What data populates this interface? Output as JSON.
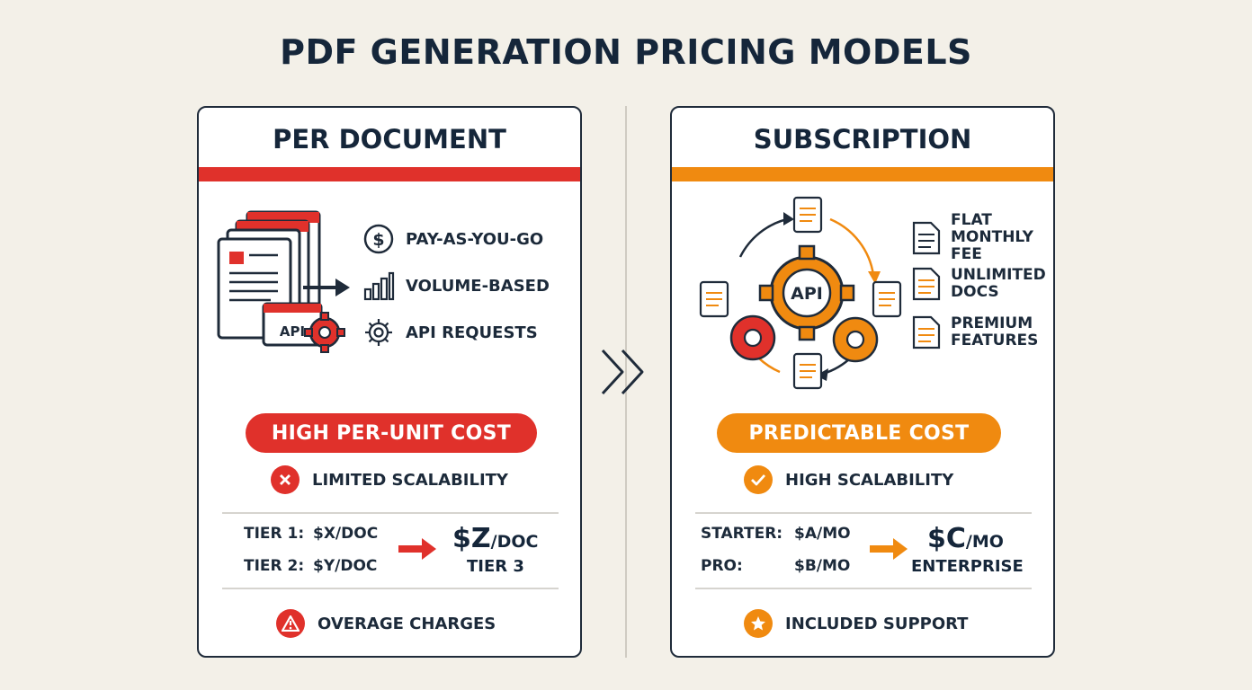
{
  "title": "PDF GENERATION PRICING MODELS",
  "left": {
    "title": "PER DOCUMENT",
    "features": [
      "PAY-AS-YOU-GO",
      "VOLUME-BASED",
      "API REQUESTS"
    ],
    "illustration_label": "API",
    "pill": "HIGH PER-UNIT COST",
    "status": "LIMITED SCALABILITY",
    "tiers": [
      {
        "label": "TIER 1:",
        "price": "$X/DOC"
      },
      {
        "label": "TIER 2:",
        "price": "$Y/DOC"
      }
    ],
    "big_price_main": "$Z",
    "big_price_unit": "/DOC",
    "big_label": "TIER 3",
    "footer": "OVERAGE CHARGES"
  },
  "right": {
    "title": "SUBSCRIPTION",
    "features": [
      "FLAT\nMONTHLY\nFEE",
      "UNLIMITED\nDOCS",
      "PREMIUM\nFEATURES"
    ],
    "illustration_label": "API",
    "pill": "PREDICTABLE COST",
    "status": "HIGH SCALABILITY",
    "tiers": [
      {
        "label": "STARTER:",
        "price": "$A/MO"
      },
      {
        "label": "PRO:",
        "price": "$B/MO"
      }
    ],
    "big_price_main": "$C",
    "big_price_unit": "/MO",
    "big_label": "ENTERPRISE",
    "footer": "INCLUDED SUPPORT"
  },
  "colors": {
    "red": "#e0312b",
    "orange": "#f08a10",
    "navy": "#15263a"
  }
}
